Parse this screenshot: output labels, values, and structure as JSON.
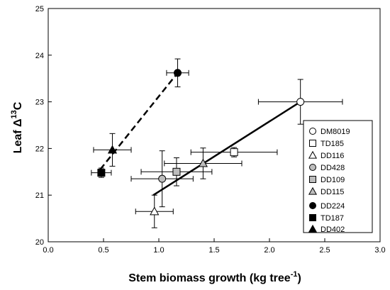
{
  "chart_data": {
    "type": "scatter",
    "title": "",
    "xlabel": {
      "main": "Stem biomass growth (kg tree",
      "sup": "-1",
      "tail": ")"
    },
    "ylabel": {
      "main": "Leaf Δ",
      "sup": "13",
      "tail": "C"
    },
    "xlim": [
      0.0,
      3.0
    ],
    "ylim": [
      20,
      25
    ],
    "xticks": [
      "0.0",
      "0.5",
      "1.0",
      "1.5",
      "2.0",
      "2.5",
      "3.0"
    ],
    "yticks": [
      "20",
      "21",
      "22",
      "23",
      "24",
      "25"
    ],
    "grid": false,
    "legend_position": "right",
    "series": [
      {
        "name": "DM8019",
        "marker": "circle",
        "fill": "#ffffff",
        "x": 2.28,
        "y": 23.0,
        "xerr": [
          0.38,
          0.38
        ],
        "yerr": [
          0.48,
          0.48
        ]
      },
      {
        "name": "TD185",
        "marker": "square",
        "fill": "#ffffff",
        "x": 1.68,
        "y": 21.92,
        "xerr": [
          0.39,
          0.39
        ],
        "yerr": [
          0.1,
          0.1
        ]
      },
      {
        "name": "DD116",
        "marker": "triangle",
        "fill": "#ffffff",
        "x": 0.96,
        "y": 20.65,
        "xerr": [
          0.17,
          0.17
        ],
        "yerr": [
          0.35,
          0.35
        ]
      },
      {
        "name": "DD428",
        "marker": "circle",
        "fill": "#bdbdbd",
        "x": 1.03,
        "y": 21.35,
        "xerr": [
          0.28,
          0.28
        ],
        "yerr": [
          0.6,
          0.6
        ]
      },
      {
        "name": "DD109",
        "marker": "square",
        "fill": "#bdbdbd",
        "x": 1.16,
        "y": 21.5,
        "xerr": [
          0.32,
          0.32
        ],
        "yerr": [
          0.3,
          0.3
        ]
      },
      {
        "name": "DD115",
        "marker": "triangle",
        "fill": "#bdbdbd",
        "x": 1.4,
        "y": 21.68,
        "xerr": [
          0.35,
          0.35
        ],
        "yerr": [
          0.33,
          0.33
        ]
      },
      {
        "name": "DD224",
        "marker": "circle",
        "fill": "#000000",
        "x": 1.17,
        "y": 23.62,
        "xerr": [
          0.1,
          0.1
        ],
        "yerr": [
          0.3,
          0.3
        ]
      },
      {
        "name": "TD187",
        "marker": "square",
        "fill": "#000000",
        "x": 0.48,
        "y": 21.48,
        "xerr": [
          0.09,
          0.09
        ],
        "yerr": [
          0.1,
          0.1
        ]
      },
      {
        "name": "DD402",
        "marker": "triangle",
        "fill": "#000000",
        "x": 0.58,
        "y": 21.97,
        "xerr": [
          0.17,
          0.17
        ],
        "yerr": [
          0.35,
          0.35
        ]
      }
    ],
    "fit_lines": [
      {
        "style": "solid",
        "x": [
          0.95,
          2.28
        ],
        "y": [
          21.0,
          23.0
        ]
      },
      {
        "style": "dashed",
        "x": [
          0.47,
          1.17
        ],
        "y": [
          21.55,
          23.62
        ]
      }
    ]
  }
}
